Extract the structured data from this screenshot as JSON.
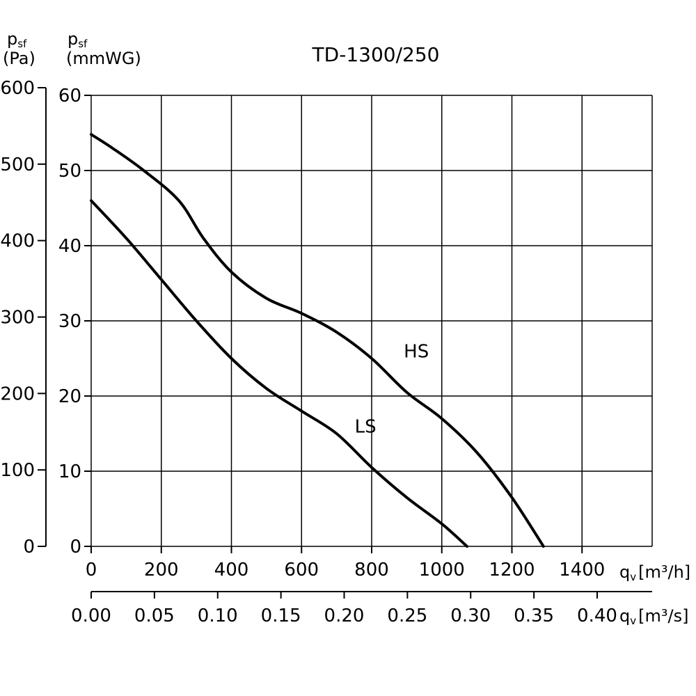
{
  "chart_data": {
    "type": "line",
    "title": "TD-1300/250",
    "y_left": {
      "symbol": "p",
      "subscript": "sf",
      "unit": "(Pa)",
      "lim": [
        0,
        600
      ],
      "ticks": [
        "600",
        "500",
        "400",
        "300",
        "200",
        "100",
        "0"
      ]
    },
    "y_right": {
      "symbol": "p",
      "subscript": "sf",
      "unit": "(mmWG)",
      "lim": [
        0,
        60
      ],
      "ticks": [
        "60",
        "50",
        "40",
        "30",
        "20",
        "10",
        "0"
      ]
    },
    "x_primary": {
      "symbol": "q",
      "subscript": "v",
      "unit": "[m³/h]",
      "lim": [
        0,
        1600
      ],
      "ticks": [
        "0",
        "200",
        "400",
        "600",
        "800",
        "1000",
        "1200",
        "1400"
      ]
    },
    "x_secondary": {
      "symbol": "q",
      "subscript": "v",
      "unit": "[m³/s]",
      "ticks": [
        "0.00",
        "0.05",
        "0.10",
        "0.15",
        "0.20",
        "0.25",
        "0.30",
        "0.35",
        "0.40"
      ]
    },
    "grid": true,
    "series": [
      {
        "name": "HS",
        "x": [
          0,
          60,
          150,
          250,
          320,
          400,
          500,
          600,
          700,
          800,
          900,
          1000,
          1100,
          1200,
          1290
        ],
        "y": [
          548,
          530,
          500,
          460,
          410,
          365,
          330,
          310,
          285,
          250,
          205,
          170,
          125,
          65,
          0
        ]
      },
      {
        "name": "LS",
        "x": [
          0,
          100,
          200,
          300,
          400,
          500,
          600,
          700,
          800,
          900,
          1000,
          1072
        ],
        "y": [
          460,
          410,
          355,
          300,
          250,
          210,
          180,
          150,
          105,
          65,
          30,
          0
        ]
      }
    ]
  }
}
